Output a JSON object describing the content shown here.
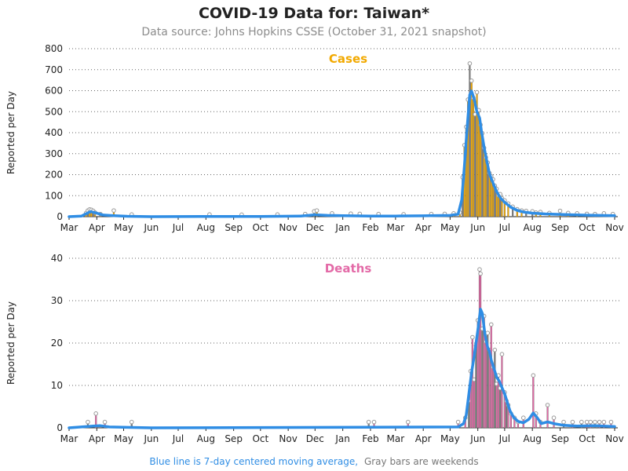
{
  "title": "COVID-19 Data for: Taiwan*",
  "subtitle": "Data source: Johns Hopkins CSSE (October 31, 2021 snapshot)",
  "footnote": {
    "blue_part": "Blue line is 7-day centered moving average,",
    "gray_part": "Gray bars are weekends"
  },
  "colors": {
    "cases": "#f2a900",
    "deaths": "#e36aa7",
    "average": "#2f8de4",
    "weekend": "#7d7d7d",
    "marker": "#9a9a9a"
  },
  "chart_data": [
    {
      "type": "bar",
      "title": "Cases",
      "ylabel": "Reported per Day",
      "ylim": [
        0,
        800
      ],
      "yticks": [
        0,
        100,
        200,
        300,
        400,
        500,
        600,
        700,
        800
      ],
      "xticks": [
        "Mar",
        "Apr",
        "May",
        "Jun",
        "Jul",
        "Aug",
        "Sep",
        "Oct",
        "Nov",
        "Dec",
        "Jan",
        "Feb",
        "Mar",
        "Apr",
        "May",
        "Jun",
        "Jul",
        "Aug",
        "Sep",
        "Oct",
        "Nov"
      ],
      "x_start": "2020-03-01",
      "x_end": "2021-11-01",
      "grid": true,
      "series": [
        {
          "name": "Daily cases",
          "points": [
            [
              "2020-03-20",
              10
            ],
            [
              "2020-03-22",
              22
            ],
            [
              "2020-03-24",
              27
            ],
            [
              "2020-03-26",
              25
            ],
            [
              "2020-03-28",
              20
            ],
            [
              "2020-03-30",
              12
            ],
            [
              "2020-04-05",
              5
            ],
            [
              "2020-04-20",
              22
            ],
            [
              "2020-05-10",
              3
            ],
            [
              "2020-08-05",
              3
            ],
            [
              "2020-09-10",
              2
            ],
            [
              "2020-10-20",
              3
            ],
            [
              "2020-11-20",
              5
            ],
            [
              "2020-11-30",
              18
            ],
            [
              "2020-12-03",
              22
            ],
            [
              "2020-12-20",
              8
            ],
            [
              "2021-01-10",
              7
            ],
            [
              "2021-01-20",
              6
            ],
            [
              "2021-02-10",
              5
            ],
            [
              "2021-03-10",
              4
            ],
            [
              "2021-04-10",
              5
            ],
            [
              "2021-04-25",
              6
            ],
            [
              "2021-05-05",
              8
            ],
            [
              "2021-05-12",
              12
            ],
            [
              "2021-05-15",
              180
            ],
            [
              "2021-05-17",
              333
            ],
            [
              "2021-05-19",
              420
            ],
            [
              "2021-05-21",
              550
            ],
            [
              "2021-05-23",
              722
            ],
            [
              "2021-05-25",
              640
            ],
            [
              "2021-05-27",
              558
            ],
            [
              "2021-05-29",
              480
            ],
            [
              "2021-05-31",
              585
            ],
            [
              "2021-06-02",
              500
            ],
            [
              "2021-06-04",
              430
            ],
            [
              "2021-06-06",
              390
            ],
            [
              "2021-06-08",
              320
            ],
            [
              "2021-06-10",
              275
            ],
            [
              "2021-06-12",
              250
            ],
            [
              "2021-06-14",
              200
            ],
            [
              "2021-06-16",
              185
            ],
            [
              "2021-06-18",
              170
            ],
            [
              "2021-06-20",
              140
            ],
            [
              "2021-06-22",
              125
            ],
            [
              "2021-06-24",
              95
            ],
            [
              "2021-06-26",
              100
            ],
            [
              "2021-06-28",
              80
            ],
            [
              "2021-07-01",
              70
            ],
            [
              "2021-07-05",
              55
            ],
            [
              "2021-07-10",
              40
            ],
            [
              "2021-07-15",
              28
            ],
            [
              "2021-07-20",
              22
            ],
            [
              "2021-07-25",
              20
            ],
            [
              "2021-08-01",
              18
            ],
            [
              "2021-08-05",
              12
            ],
            [
              "2021-08-10",
              15
            ],
            [
              "2021-08-20",
              10
            ],
            [
              "2021-09-01",
              20
            ],
            [
              "2021-09-10",
              10
            ],
            [
              "2021-09-20",
              8
            ],
            [
              "2021-10-01",
              6
            ],
            [
              "2021-10-10",
              5
            ],
            [
              "2021-10-20",
              8
            ],
            [
              "2021-10-30",
              5
            ]
          ]
        },
        {
          "name": "7-day centered moving average",
          "points": [
            [
              "2020-03-01",
              0
            ],
            [
              "2020-03-15",
              3
            ],
            [
              "2020-03-20",
              14
            ],
            [
              "2020-03-25",
              24
            ],
            [
              "2020-03-31",
              18
            ],
            [
              "2020-04-08",
              8
            ],
            [
              "2020-04-20",
              5
            ],
            [
              "2020-05-05",
              2
            ],
            [
              "2020-06-01",
              0
            ],
            [
              "2020-08-01",
              1
            ],
            [
              "2020-10-01",
              1
            ],
            [
              "2020-11-15",
              3
            ],
            [
              "2020-12-01",
              9
            ],
            [
              "2020-12-15",
              6
            ],
            [
              "2021-01-01",
              5
            ],
            [
              "2021-02-01",
              3
            ],
            [
              "2021-03-01",
              3
            ],
            [
              "2021-04-01",
              4
            ],
            [
              "2021-05-01",
              6
            ],
            [
              "2021-05-10",
              12
            ],
            [
              "2021-05-14",
              80
            ],
            [
              "2021-05-17",
              240
            ],
            [
              "2021-05-20",
              420
            ],
            [
              "2021-05-23",
              580
            ],
            [
              "2021-05-25",
              598
            ],
            [
              "2021-05-28",
              560
            ],
            [
              "2021-05-31",
              500
            ],
            [
              "2021-06-03",
              470
            ],
            [
              "2021-06-05",
              410
            ],
            [
              "2021-06-08",
              330
            ],
            [
              "2021-06-11",
              265
            ],
            [
              "2021-06-14",
              205
            ],
            [
              "2021-06-18",
              160
            ],
            [
              "2021-06-22",
              120
            ],
            [
              "2021-06-26",
              90
            ],
            [
              "2021-07-01",
              68
            ],
            [
              "2021-07-08",
              45
            ],
            [
              "2021-07-15",
              30
            ],
            [
              "2021-07-22",
              22
            ],
            [
              "2021-08-01",
              17
            ],
            [
              "2021-08-15",
              13
            ],
            [
              "2021-09-01",
              11
            ],
            [
              "2021-09-15",
              9
            ],
            [
              "2021-10-01",
              7
            ],
            [
              "2021-10-15",
              6
            ],
            [
              "2021-11-01",
              5
            ]
          ]
        }
      ]
    },
    {
      "type": "bar",
      "title": "Deaths",
      "ylabel": "Reported per Day",
      "ylim": [
        0,
        40
      ],
      "yticks": [
        0,
        10,
        20,
        30,
        40
      ],
      "xticks": [
        "Mar",
        "Apr",
        "May",
        "Jun",
        "Jul",
        "Aug",
        "Sep",
        "Oct",
        "Nov",
        "Dec",
        "Jan",
        "Feb",
        "Mar",
        "Apr",
        "May",
        "Jun",
        "Jul",
        "Aug",
        "Sep",
        "Oct",
        "Nov"
      ],
      "x_start": "2020-03-01",
      "x_end": "2021-11-01",
      "grid": true,
      "series": [
        {
          "name": "Daily deaths",
          "points": [
            [
              "2020-03-22",
              1
            ],
            [
              "2020-03-31",
              3
            ],
            [
              "2020-04-10",
              1
            ],
            [
              "2020-05-10",
              1
            ],
            [
              "2021-01-30",
              1
            ],
            [
              "2021-02-05",
              1
            ],
            [
              "2021-03-15",
              1
            ],
            [
              "2021-05-10",
              1
            ],
            [
              "2021-05-18",
              2
            ],
            [
              "2021-05-22",
              6
            ],
            [
              "2021-05-24",
              13
            ],
            [
              "2021-05-26",
              21
            ],
            [
              "2021-05-28",
              11
            ],
            [
              "2021-05-30",
              19
            ],
            [
              "2021-06-01",
              25
            ],
            [
              "2021-06-03",
              37
            ],
            [
              "2021-06-04",
              36
            ],
            [
              "2021-06-06",
              23
            ],
            [
              "2021-06-08",
              26
            ],
            [
              "2021-06-10",
              20
            ],
            [
              "2021-06-12",
              22
            ],
            [
              "2021-06-14",
              18
            ],
            [
              "2021-06-16",
              24
            ],
            [
              "2021-06-18",
              14
            ],
            [
              "2021-06-20",
              18
            ],
            [
              "2021-06-22",
              10
            ],
            [
              "2021-06-24",
              12
            ],
            [
              "2021-06-26",
              9
            ],
            [
              "2021-06-28",
              17
            ],
            [
              "2021-07-01",
              8
            ],
            [
              "2021-07-03",
              6
            ],
            [
              "2021-07-05",
              5
            ],
            [
              "2021-07-08",
              3
            ],
            [
              "2021-07-12",
              2
            ],
            [
              "2021-07-16",
              1
            ],
            [
              "2021-07-22",
              2
            ],
            [
              "2021-08-02",
              12
            ],
            [
              "2021-08-05",
              3
            ],
            [
              "2021-08-10",
              1
            ],
            [
              "2021-08-18",
              5
            ],
            [
              "2021-08-25",
              2
            ],
            [
              "2021-09-05",
              1
            ],
            [
              "2021-09-15",
              1
            ],
            [
              "2021-09-25",
              1
            ],
            [
              "2021-10-01",
              1
            ],
            [
              "2021-10-05",
              1
            ],
            [
              "2021-10-10",
              1
            ],
            [
              "2021-10-15",
              1
            ],
            [
              "2021-10-20",
              1
            ],
            [
              "2021-10-28",
              1
            ]
          ]
        },
        {
          "name": "7-day centered moving average",
          "points": [
            [
              "2020-03-01",
              0
            ],
            [
              "2020-03-28",
              0.4
            ],
            [
              "2020-04-05",
              0.5
            ],
            [
              "2020-04-15",
              0.2
            ],
            [
              "2020-05-10",
              0.1
            ],
            [
              "2020-06-01",
              0
            ],
            [
              "2021-05-10",
              0.2
            ],
            [
              "2021-05-16",
              1
            ],
            [
              "2021-05-19",
              3
            ],
            [
              "2021-05-22",
              8
            ],
            [
              "2021-05-25",
              13
            ],
            [
              "2021-05-28",
              17
            ],
            [
              "2021-06-01",
              23
            ],
            [
              "2021-06-04",
              28
            ],
            [
              "2021-06-06",
              27
            ],
            [
              "2021-06-09",
              22
            ],
            [
              "2021-06-12",
              19
            ],
            [
              "2021-06-14",
              18
            ],
            [
              "2021-06-16",
              16
            ],
            [
              "2021-06-19",
              14
            ],
            [
              "2021-06-22",
              12
            ],
            [
              "2021-06-25",
              11
            ],
            [
              "2021-06-28",
              9.5
            ],
            [
              "2021-07-01",
              8
            ],
            [
              "2021-07-04",
              6
            ],
            [
              "2021-07-07",
              4
            ],
            [
              "2021-07-11",
              2.5
            ],
            [
              "2021-07-16",
              1.5
            ],
            [
              "2021-07-22",
              1.2
            ],
            [
              "2021-07-28",
              2
            ],
            [
              "2021-08-02",
              3.5
            ],
            [
              "2021-08-06",
              2.5
            ],
            [
              "2021-08-11",
              1
            ],
            [
              "2021-08-18",
              1.4
            ],
            [
              "2021-08-25",
              1
            ],
            [
              "2021-09-05",
              0.6
            ],
            [
              "2021-09-20",
              0.4
            ],
            [
              "2021-10-10",
              0.5
            ],
            [
              "2021-11-01",
              0.3
            ]
          ]
        }
      ]
    }
  ]
}
